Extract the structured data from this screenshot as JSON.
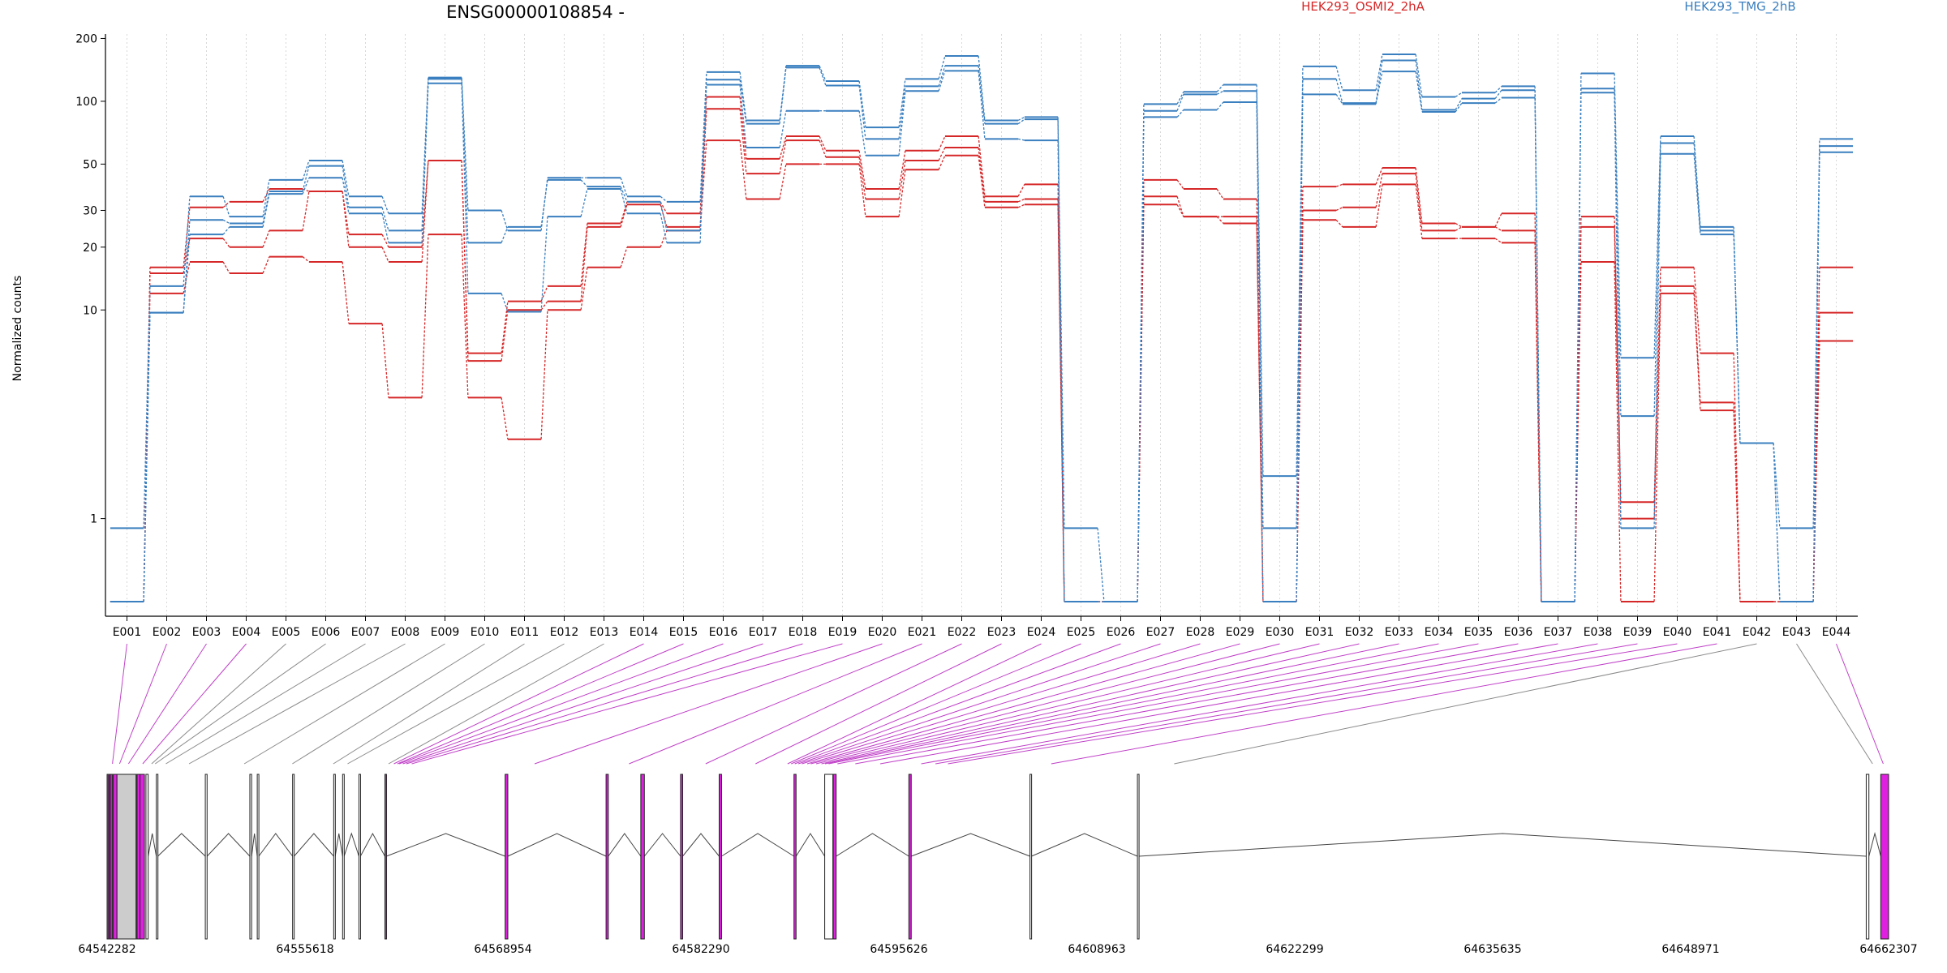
{
  "chart_data": {
    "type": "line",
    "title": "ENSG00000108854 -",
    "ylabel": "Normalized counts",
    "yscale": "log",
    "ylim": [
      0.4,
      210
    ],
    "yticks": [
      "200",
      "100",
      "50",
      "30",
      "20",
      "10",
      "1"
    ],
    "ytick_values": [
      200,
      100,
      50,
      30,
      20,
      10,
      1
    ],
    "grid": "vertical dotted lines at each exon",
    "legend_placement": "top",
    "colors": {
      "HEK293_OSMI2_2hA": "#d62728",
      "HEK293_TMG_2hB": "#3a7fbf",
      "exon_highlight": "#e020e0",
      "exon_plain": "#cccccc"
    },
    "categories": [
      "E001",
      "E002",
      "E003",
      "E004",
      "E005",
      "E006",
      "E007",
      "E008",
      "E009",
      "E010",
      "E011",
      "E012",
      "E013",
      "E014",
      "E015",
      "E016",
      "E017",
      "E018",
      "E019",
      "E020",
      "E021",
      "E022",
      "E023",
      "E024",
      "E025",
      "E026",
      "E027",
      "E028",
      "E029",
      "E030",
      "E031",
      "E032",
      "E033",
      "E034",
      "E035",
      "E036",
      "E037",
      "E038",
      "E039",
      "E040",
      "E041",
      "E042",
      "E043",
      "E044"
    ],
    "series": [
      {
        "name": "HEK293_OSMI2_2hA",
        "group": "HEK293_OSMI2_2hA",
        "values": [
          0.4,
          16,
          31,
          33,
          38,
          37,
          23,
          20,
          52,
          6.2,
          11,
          13,
          26,
          33,
          29,
          105,
          53,
          68,
          58,
          38,
          58,
          68,
          35,
          40,
          0.4,
          0.4,
          42,
          38,
          34,
          0.4,
          39,
          40,
          48,
          26,
          25,
          29,
          0.4,
          28,
          1.2,
          16,
          6.2,
          0.4,
          0.4,
          16
        ]
      },
      {
        "name": "HEK293_OSMI2_2hA",
        "group": "HEK293_OSMI2_2hA",
        "values": [
          0.4,
          15,
          22,
          20,
          24,
          37,
          20,
          17,
          52,
          5.7,
          10,
          11,
          25,
          32,
          25,
          92,
          45,
          65,
          54,
          34,
          52,
          60,
          33,
          34,
          0.4,
          0.4,
          35,
          28,
          28,
          0.4,
          30,
          31,
          45,
          24,
          25,
          24,
          0.4,
          25,
          1.0,
          13,
          3.6,
          0.4,
          0.4,
          9.7
        ]
      },
      {
        "name": "HEK293_OSMI2_2hA",
        "group": "HEK293_OSMI2_2hA",
        "values": [
          0.4,
          12,
          17,
          15,
          18,
          17,
          8.6,
          3.8,
          23,
          3.8,
          2.4,
          10,
          16,
          20,
          24,
          65,
          34,
          50,
          50,
          28,
          47,
          55,
          31,
          32,
          0.4,
          0.4,
          32,
          28,
          26,
          0.4,
          27,
          25,
          40,
          22,
          22,
          21,
          0.4,
          17,
          0.4,
          12,
          3.3,
          0.4,
          0.4,
          7.1
        ]
      },
      {
        "name": "HEK293_TMG_2hB",
        "group": "HEK293_TMG_2hB",
        "values": [
          0.9,
          13,
          35,
          28,
          42,
          52,
          35,
          29,
          130,
          30,
          24,
          43,
          43,
          35,
          33,
          138,
          81,
          148,
          125,
          75,
          128,
          165,
          81,
          84,
          0.9,
          0.4,
          97,
          111,
          120,
          1.6,
          147,
          113,
          168,
          105,
          110,
          118,
          0.4,
          136,
          5.9,
          68,
          25,
          2.3,
          0.9,
          66
        ]
      },
      {
        "name": "HEK293_TMG_2hB",
        "group": "HEK293_TMG_2hB",
        "values": [
          0.4,
          9.7,
          27,
          26,
          37,
          49,
          31,
          24,
          128,
          21,
          25,
          42,
          39,
          33,
          24,
          127,
          78,
          145,
          119,
          66,
          118,
          148,
          78,
          82,
          0.4,
          0.4,
          90,
          108,
          112,
          0.9,
          128,
          98,
          157,
          91,
          103,
          113,
          0.4,
          115,
          3.1,
          63,
          24,
          2.3,
          0.4,
          61
        ]
      },
      {
        "name": "HEK293_TMG_2hB",
        "group": "HEK293_TMG_2hB",
        "values": [
          0.4,
          9.7,
          23,
          25,
          36,
          43,
          29,
          21,
          122,
          12,
          9.8,
          28,
          38,
          29,
          21,
          120,
          60,
          90,
          90,
          55,
          112,
          140,
          66,
          65,
          0.4,
          0.4,
          84,
          91,
          99,
          0.4,
          108,
          97,
          139,
          89,
          98,
          104,
          0.4,
          110,
          0.9,
          56,
          23,
          2.3,
          0.4,
          57
        ]
      }
    ],
    "exon_map_highlight": [
      true,
      true,
      true,
      true,
      false,
      false,
      false,
      false,
      false,
      false,
      false,
      false,
      false,
      true,
      true,
      true,
      true,
      true,
      true,
      true,
      true,
      true,
      true,
      true,
      true,
      true,
      true,
      true,
      true,
      true,
      true,
      true,
      true,
      true,
      true,
      true,
      true,
      true,
      true,
      true,
      true,
      false,
      false,
      true
    ],
    "exon_map_anchor_frac": [
      0.003,
      0.007,
      0.012,
      0.02,
      0.025,
      0.027,
      0.033,
      0.046,
      0.077,
      0.104,
      0.127,
      0.135,
      0.158,
      0.161,
      0.163,
      0.164,
      0.166,
      0.168,
      0.171,
      0.24,
      0.293,
      0.336,
      0.364,
      0.382,
      0.384,
      0.386,
      0.388,
      0.39,
      0.393,
      0.395,
      0.398,
      0.401,
      0.403,
      0.405,
      0.41,
      0.42,
      0.434,
      0.457,
      0.465,
      0.472,
      0.53,
      0.599,
      0.991,
      0.997
    ],
    "genomic_axis": {
      "ticks": [
        "64542282",
        "64555618",
        "64568954",
        "64582290",
        "64595626",
        "64608963",
        "64622299",
        "64635635",
        "64648971",
        "64662307"
      ]
    },
    "gene_model": {
      "exons": [
        {
          "start": 64542282,
          "end": 64542500,
          "color": "#e020e0"
        },
        {
          "start": 64542500,
          "end": 64542700,
          "color": "#e020e0"
        },
        {
          "start": 64542700,
          "end": 64542950,
          "color": "#e020e0"
        },
        {
          "start": 64542950,
          "end": 64544300,
          "color": "#cccccc"
        },
        {
          "start": 64544300,
          "end": 64544500,
          "color": "#e020e0"
        },
        {
          "start": 64544500,
          "end": 64544800,
          "color": "#e020e0"
        },
        {
          "start": 64544900,
          "end": 64545050,
          "color": "#ffffff"
        },
        {
          "start": 64545600,
          "end": 64545700,
          "color": "#ffffff"
        },
        {
          "start": 64548900,
          "end": 64549020,
          "color": "#ffffff"
        },
        {
          "start": 64551900,
          "end": 64552020,
          "color": "#ffffff"
        },
        {
          "start": 64552400,
          "end": 64552500,
          "color": "#ffffff"
        },
        {
          "start": 64554780,
          "end": 64554880,
          "color": "#ffffff"
        },
        {
          "start": 64557550,
          "end": 64557650,
          "color": "#ffffff"
        },
        {
          "start": 64558150,
          "end": 64558250,
          "color": "#ffffff"
        },
        {
          "start": 64559250,
          "end": 64559350,
          "color": "#ffffff"
        },
        {
          "start": 64561000,
          "end": 64561100,
          "color": "#e020e0"
        },
        {
          "start": 64569100,
          "end": 64569280,
          "color": "#e020e0"
        },
        {
          "start": 64575900,
          "end": 64576050,
          "color": "#e020e0"
        },
        {
          "start": 64578240,
          "end": 64578480,
          "color": "#e020e0"
        },
        {
          "start": 64580920,
          "end": 64581060,
          "color": "#e020e0"
        },
        {
          "start": 64583520,
          "end": 64583680,
          "color": "#e020e0"
        },
        {
          "start": 64588560,
          "end": 64588700,
          "color": "#e020e0"
        },
        {
          "start": 64590630,
          "end": 64591180,
          "color": "#ffffff"
        },
        {
          "start": 64591200,
          "end": 64591400,
          "color": "#e020e0"
        },
        {
          "start": 64596300,
          "end": 64596460,
          "color": "#e020e0"
        },
        {
          "start": 64604460,
          "end": 64604560,
          "color": "#ffffff"
        },
        {
          "start": 64611700,
          "end": 64611800,
          "color": "#ffffff"
        },
        {
          "start": 64660800,
          "end": 64660980,
          "color": "#ffffff"
        },
        {
          "start": 64661780,
          "end": 64662307,
          "color": "#e020e0"
        }
      ]
    }
  }
}
